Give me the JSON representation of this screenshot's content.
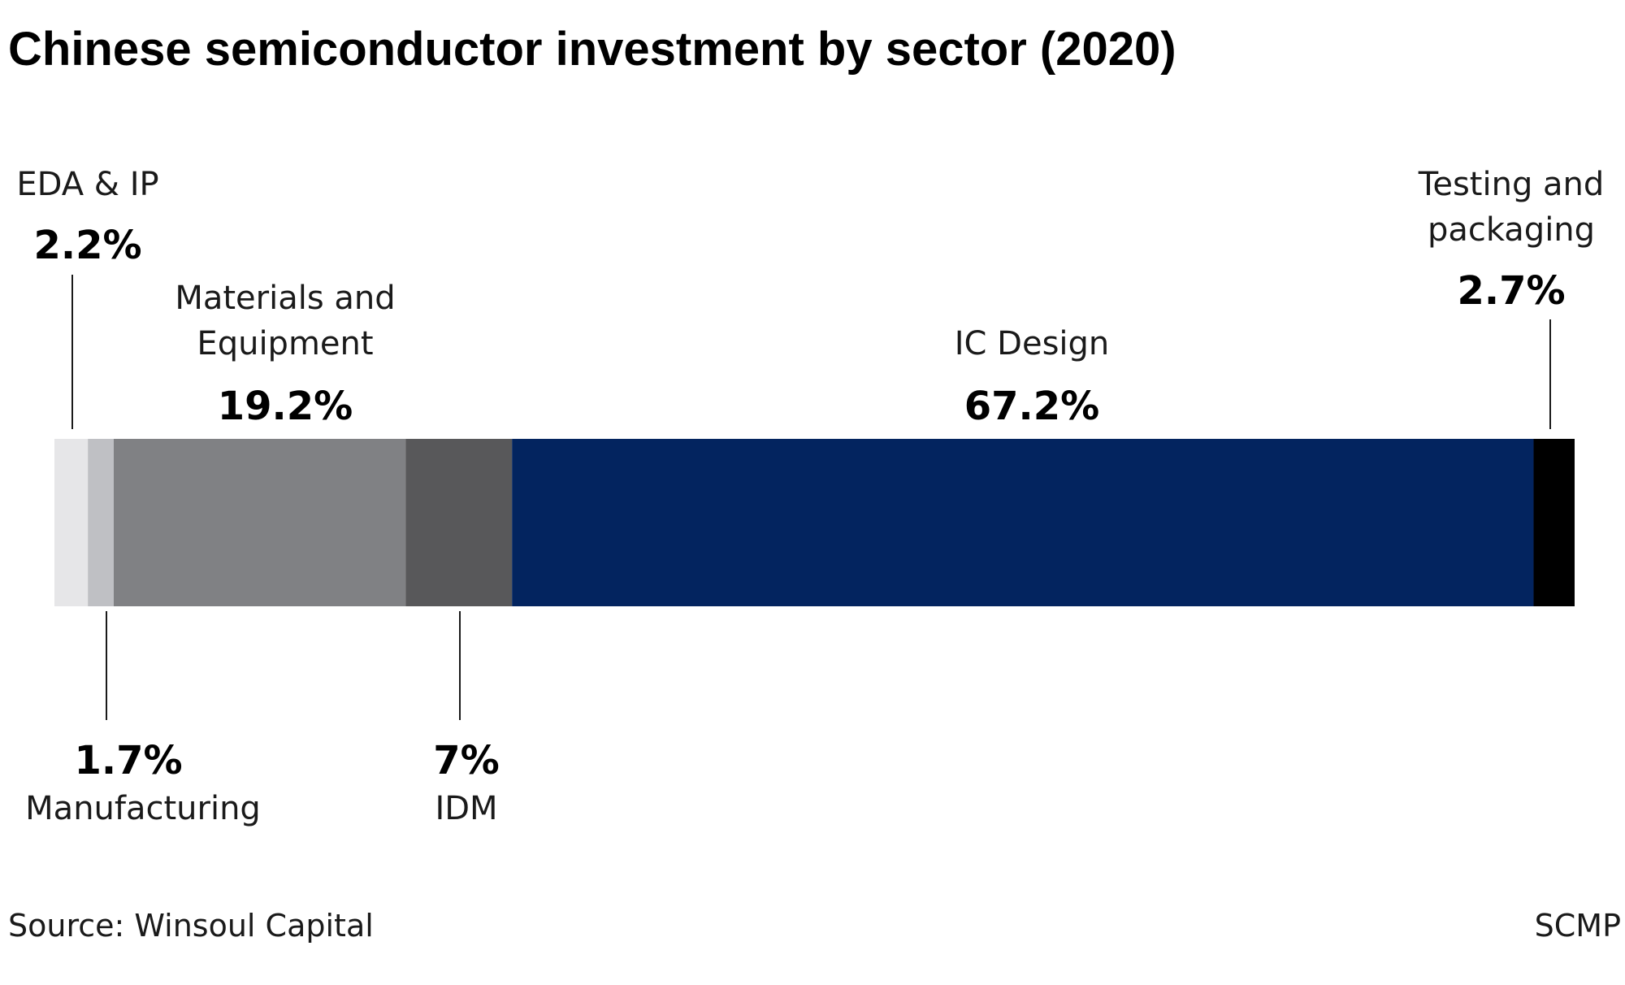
{
  "chart_data": {
    "type": "bar",
    "orientation": "horizontal-stacked-100",
    "title": "Chinese semiconductor investment by sector (2020)",
    "unit": "%",
    "segments": [
      {
        "name": "EDA & IP",
        "value": 2.2,
        "value_label": "2.2%",
        "color": "#e6e6e8"
      },
      {
        "name": "Manufacturing",
        "value": 1.7,
        "value_label": "1.7%",
        "color": "#bfc0c4"
      },
      {
        "name": "Materials and Equipment",
        "value": 19.2,
        "value_label": "19.2%",
        "color": "#808184"
      },
      {
        "name": "IDM",
        "value": 7,
        "value_label": "7%",
        "color": "#58585a"
      },
      {
        "name": "IC Design",
        "value": 67.2,
        "value_label": "67.2%",
        "color": "#03245f"
      },
      {
        "name": "Testing and packaging",
        "value": 2.7,
        "value_label": "2.7%",
        "color": "#000000"
      }
    ],
    "label_lines": {
      "EDA & IP": [
        "EDA & IP"
      ],
      "Manufacturing": [
        "Manufacturing"
      ],
      "Materials and Equipment": [
        "Materials and",
        "Equipment"
      ],
      "IDM": [
        "IDM"
      ],
      "IC Design": [
        "IC Design"
      ],
      "Testing and packaging": [
        "Testing and",
        "packaging"
      ]
    },
    "source": "Source: Winsoul Capital",
    "credit": "SCMP"
  }
}
